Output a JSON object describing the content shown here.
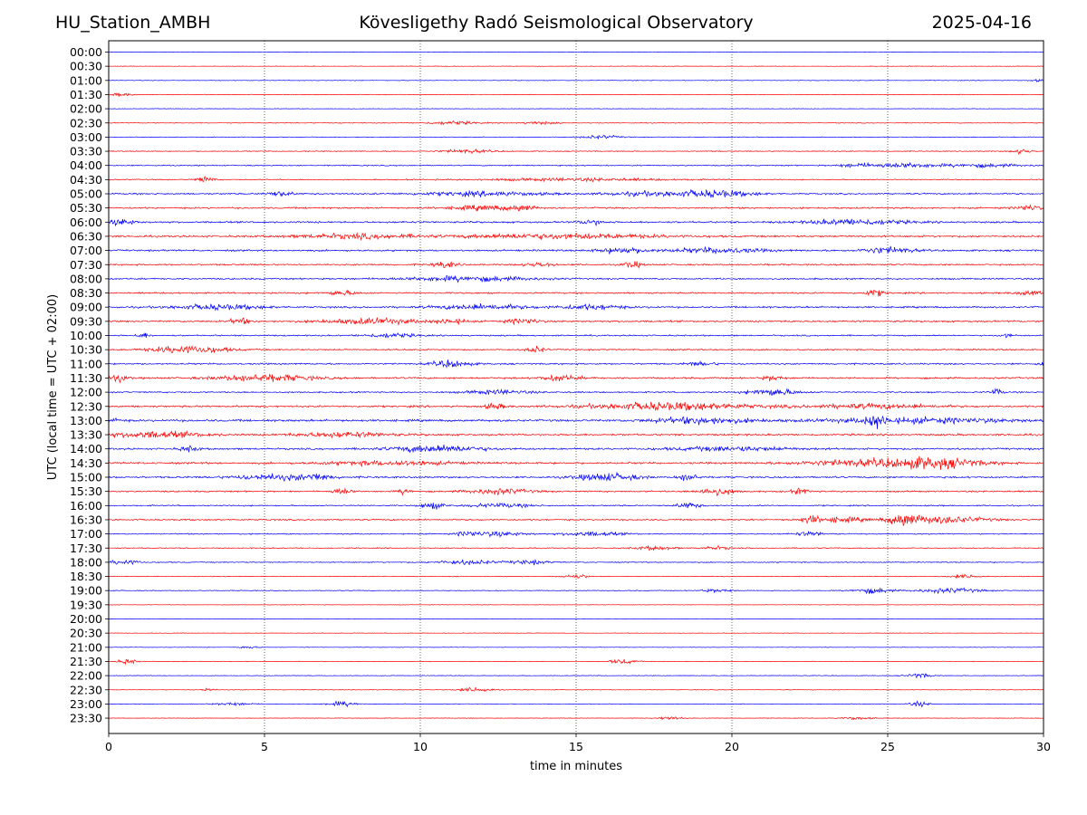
{
  "header": {
    "station": "HU_Station_AMBH",
    "title": "Kövesligethy Radó Seismological Observatory",
    "date": "2025-04-16"
  },
  "chart_data": {
    "type": "line",
    "chart_kind": "helicorder seismogram",
    "xlabel": "time in minutes",
    "ylabel": "UTC (local time = UTC + 02:00)",
    "xlim": [
      0,
      30
    ],
    "x_ticks": [
      "0",
      "5",
      "10",
      "15",
      "20",
      "25",
      "30"
    ],
    "x_gridlines": [
      5,
      10,
      15,
      20,
      25
    ],
    "grid_style": "dotted vertical",
    "colors": {
      "even_rows": "#0000ff",
      "odd_rows": "#ff0000",
      "axes": "#000000"
    },
    "rows": [
      {
        "label": "00:00",
        "noise": 0.8,
        "events": []
      },
      {
        "label": "00:30",
        "noise": 0.8,
        "events": []
      },
      {
        "label": "01:00",
        "noise": 1.0,
        "events": [
          [
            29.8,
            0.2,
            1.5
          ]
        ]
      },
      {
        "label": "01:30",
        "noise": 1.0,
        "events": [
          [
            0.4,
            0.4,
            2.0
          ]
        ]
      },
      {
        "label": "02:00",
        "noise": 0.8,
        "events": []
      },
      {
        "label": "02:30",
        "noise": 1.2,
        "events": [
          [
            11.0,
            0.8,
            2.5
          ],
          [
            13.8,
            0.6,
            2.0
          ]
        ]
      },
      {
        "label": "03:00",
        "noise": 1.2,
        "events": [
          [
            15.8,
            0.6,
            2.5
          ]
        ]
      },
      {
        "label": "03:30",
        "noise": 1.4,
        "events": [
          [
            11.5,
            0.8,
            2.5
          ],
          [
            29.3,
            0.3,
            3.5
          ]
        ]
      },
      {
        "label": "04:00",
        "noise": 1.8,
        "events": [
          [
            25.5,
            1.0,
            3.5
          ],
          [
            28.0,
            1.2,
            2.5
          ],
          [
            24.0,
            0.6,
            2.5
          ]
        ]
      },
      {
        "label": "04:30",
        "noise": 1.6,
        "events": [
          [
            3.1,
            0.3,
            4.0
          ],
          [
            15.0,
            3.0,
            2.0
          ]
        ]
      },
      {
        "label": "05:00",
        "noise": 2.5,
        "events": [
          [
            5.5,
            0.4,
            4.0
          ],
          [
            19.5,
            1.2,
            4.5
          ],
          [
            17.5,
            1.5,
            3.0
          ],
          [
            12.0,
            2.0,
            3.0
          ]
        ]
      },
      {
        "label": "05:30",
        "noise": 2.5,
        "events": [
          [
            12.0,
            1.0,
            3.5
          ],
          [
            13.3,
            0.4,
            4.0
          ],
          [
            29.5,
            0.4,
            4.0
          ]
        ]
      },
      {
        "label": "06:00",
        "noise": 2.8,
        "events": [
          [
            0.4,
            0.4,
            4.5
          ],
          [
            24.0,
            1.5,
            4.0
          ],
          [
            15.5,
            0.4,
            3.5
          ]
        ]
      },
      {
        "label": "06:30",
        "noise": 3.0,
        "events": [
          [
            14.5,
            3.0,
            3.5
          ],
          [
            8.0,
            2.0,
            3.0
          ]
        ]
      },
      {
        "label": "07:00",
        "noise": 2.8,
        "events": [
          [
            16.5,
            0.8,
            4.0
          ],
          [
            19.5,
            1.5,
            3.5
          ],
          [
            25.0,
            0.8,
            4.5
          ]
        ]
      },
      {
        "label": "07:30",
        "noise": 2.5,
        "events": [
          [
            16.8,
            0.3,
            4.5
          ],
          [
            10.8,
            0.4,
            4.0
          ],
          [
            13.8,
            0.5,
            3.0
          ]
        ]
      },
      {
        "label": "08:00",
        "noise": 2.5,
        "events": [
          [
            11.5,
            2.0,
            3.5
          ]
        ]
      },
      {
        "label": "08:30",
        "noise": 2.5,
        "events": [
          [
            24.6,
            0.3,
            4.5
          ],
          [
            7.5,
            0.5,
            3.0
          ],
          [
            29.5,
            0.4,
            3.5
          ]
        ]
      },
      {
        "label": "09:00",
        "noise": 2.8,
        "events": [
          [
            3.5,
            1.5,
            3.5
          ],
          [
            12.0,
            1.5,
            3.5
          ],
          [
            15.5,
            1.0,
            3.5
          ]
        ]
      },
      {
        "label": "09:30",
        "noise": 2.8,
        "events": [
          [
            8.5,
            1.5,
            4.0
          ],
          [
            4.2,
            0.3,
            4.5
          ],
          [
            13.3,
            0.5,
            4.0
          ],
          [
            11.0,
            0.5,
            3.5
          ]
        ]
      },
      {
        "label": "10:00",
        "noise": 2.2,
        "events": [
          [
            1.1,
            0.2,
            4.0
          ],
          [
            9.0,
            0.8,
            3.0
          ],
          [
            28.8,
            0.2,
            3.0
          ]
        ]
      },
      {
        "label": "10:30",
        "noise": 2.2,
        "events": [
          [
            3.0,
            1.0,
            4.0
          ],
          [
            13.7,
            0.3,
            4.5
          ],
          [
            2.0,
            0.8,
            3.0
          ]
        ]
      },
      {
        "label": "11:00",
        "noise": 2.5,
        "events": [
          [
            11.0,
            0.6,
            5.0
          ],
          [
            30.0,
            0.2,
            4.0
          ],
          [
            19.0,
            0.5,
            2.5
          ]
        ]
      },
      {
        "label": "11:30",
        "noise": 2.8,
        "events": [
          [
            0.3,
            0.3,
            4.5
          ],
          [
            5.0,
            1.5,
            5.0
          ],
          [
            14.5,
            0.6,
            4.0
          ],
          [
            21.3,
            0.3,
            3.5
          ]
        ]
      },
      {
        "label": "12:00",
        "noise": 2.2,
        "events": [
          [
            21.3,
            0.8,
            5.0
          ],
          [
            28.5,
            0.2,
            4.5
          ],
          [
            12.5,
            1.0,
            3.0
          ]
        ]
      },
      {
        "label": "12:30",
        "noise": 3.0,
        "events": [
          [
            18.0,
            2.5,
            5.5
          ],
          [
            12.4,
            0.3,
            4.0
          ],
          [
            24.5,
            2.0,
            3.0
          ]
        ]
      },
      {
        "label": "13:00",
        "noise": 3.5,
        "events": [
          [
            24.6,
            0.3,
            8.0
          ],
          [
            19.0,
            1.5,
            4.5
          ],
          [
            0.1,
            0.2,
            4.5
          ],
          [
            26.0,
            3.0,
            3.5
          ]
        ]
      },
      {
        "label": "13:30",
        "noise": 3.0,
        "events": [
          [
            1.5,
            1.5,
            4.5
          ],
          [
            7.5,
            1.5,
            3.5
          ]
        ]
      },
      {
        "label": "14:00",
        "noise": 2.8,
        "events": [
          [
            10.5,
            1.5,
            5.0
          ],
          [
            2.6,
            0.3,
            4.0
          ],
          [
            20.0,
            2.0,
            3.0
          ]
        ]
      },
      {
        "label": "14:30",
        "noise": 3.0,
        "events": [
          [
            26.5,
            1.5,
            7.5
          ],
          [
            24.0,
            2.0,
            4.0
          ],
          [
            9.0,
            2.0,
            3.0
          ]
        ]
      },
      {
        "label": "15:00",
        "noise": 2.8,
        "events": [
          [
            16.0,
            1.0,
            5.5
          ],
          [
            18.6,
            0.3,
            6.0
          ],
          [
            5.5,
            1.5,
            4.0
          ],
          [
            6.7,
            0.3,
            4.0
          ]
        ]
      },
      {
        "label": "15:30",
        "noise": 2.4,
        "events": [
          [
            19.5,
            0.6,
            5.0
          ],
          [
            7.5,
            0.3,
            4.5
          ],
          [
            12.5,
            1.0,
            4.0
          ],
          [
            22.2,
            0.3,
            4.0
          ],
          [
            9.5,
            0.2,
            4.0
          ]
        ]
      },
      {
        "label": "16:00",
        "noise": 2.0,
        "events": [
          [
            10.4,
            0.4,
            4.5
          ],
          [
            18.6,
            0.4,
            4.0
          ],
          [
            12.5,
            1.0,
            3.0
          ]
        ]
      },
      {
        "label": "16:30",
        "noise": 2.4,
        "events": [
          [
            25.5,
            0.5,
            8.0
          ],
          [
            26.8,
            1.3,
            5.0
          ],
          [
            22.5,
            0.3,
            5.0
          ],
          [
            23.5,
            0.8,
            3.5
          ]
        ]
      },
      {
        "label": "17:00",
        "noise": 1.8,
        "events": [
          [
            11.5,
            0.3,
            4.0
          ],
          [
            12.5,
            0.8,
            3.5
          ],
          [
            15.5,
            1.0,
            3.0
          ],
          [
            22.5,
            0.5,
            3.0
          ]
        ]
      },
      {
        "label": "17:30",
        "noise": 1.6,
        "events": [
          [
            17.5,
            0.6,
            3.0
          ],
          [
            19.5,
            0.4,
            2.5
          ]
        ]
      },
      {
        "label": "18:00",
        "noise": 1.6,
        "events": [
          [
            0.5,
            0.5,
            3.5
          ],
          [
            11.5,
            1.0,
            3.0
          ],
          [
            13.5,
            0.6,
            3.0
          ]
        ]
      },
      {
        "label": "18:30",
        "noise": 1.2,
        "events": [
          [
            15.0,
            0.4,
            3.0
          ],
          [
            27.5,
            0.5,
            2.5
          ]
        ]
      },
      {
        "label": "19:00",
        "noise": 1.3,
        "events": [
          [
            24.5,
            0.6,
            4.0
          ],
          [
            27.0,
            1.0,
            3.5
          ],
          [
            19.5,
            0.5,
            2.5
          ]
        ]
      },
      {
        "label": "19:30",
        "noise": 0.8,
        "events": []
      },
      {
        "label": "20:00",
        "noise": 0.8,
        "events": []
      },
      {
        "label": "20:30",
        "noise": 0.8,
        "events": []
      },
      {
        "label": "21:00",
        "noise": 0.8,
        "events": [
          [
            4.5,
            0.3,
            2.0
          ]
        ]
      },
      {
        "label": "21:30",
        "noise": 1.0,
        "events": [
          [
            0.6,
            0.3,
            3.5
          ],
          [
            16.5,
            0.4,
            3.5
          ]
        ]
      },
      {
        "label": "22:00",
        "noise": 1.0,
        "events": [
          [
            26.0,
            0.4,
            3.5
          ]
        ]
      },
      {
        "label": "22:30",
        "noise": 1.0,
        "events": [
          [
            11.8,
            0.5,
            3.5
          ],
          [
            3.2,
            0.2,
            2.5
          ]
        ]
      },
      {
        "label": "23:00",
        "noise": 1.0,
        "events": [
          [
            7.5,
            0.5,
            3.5
          ],
          [
            26.0,
            0.3,
            3.5
          ],
          [
            4.0,
            0.6,
            2.0
          ]
        ]
      },
      {
        "label": "23:30",
        "noise": 0.8,
        "events": [
          [
            18.0,
            0.4,
            2.5
          ],
          [
            24.0,
            0.5,
            2.0
          ]
        ]
      }
    ]
  }
}
